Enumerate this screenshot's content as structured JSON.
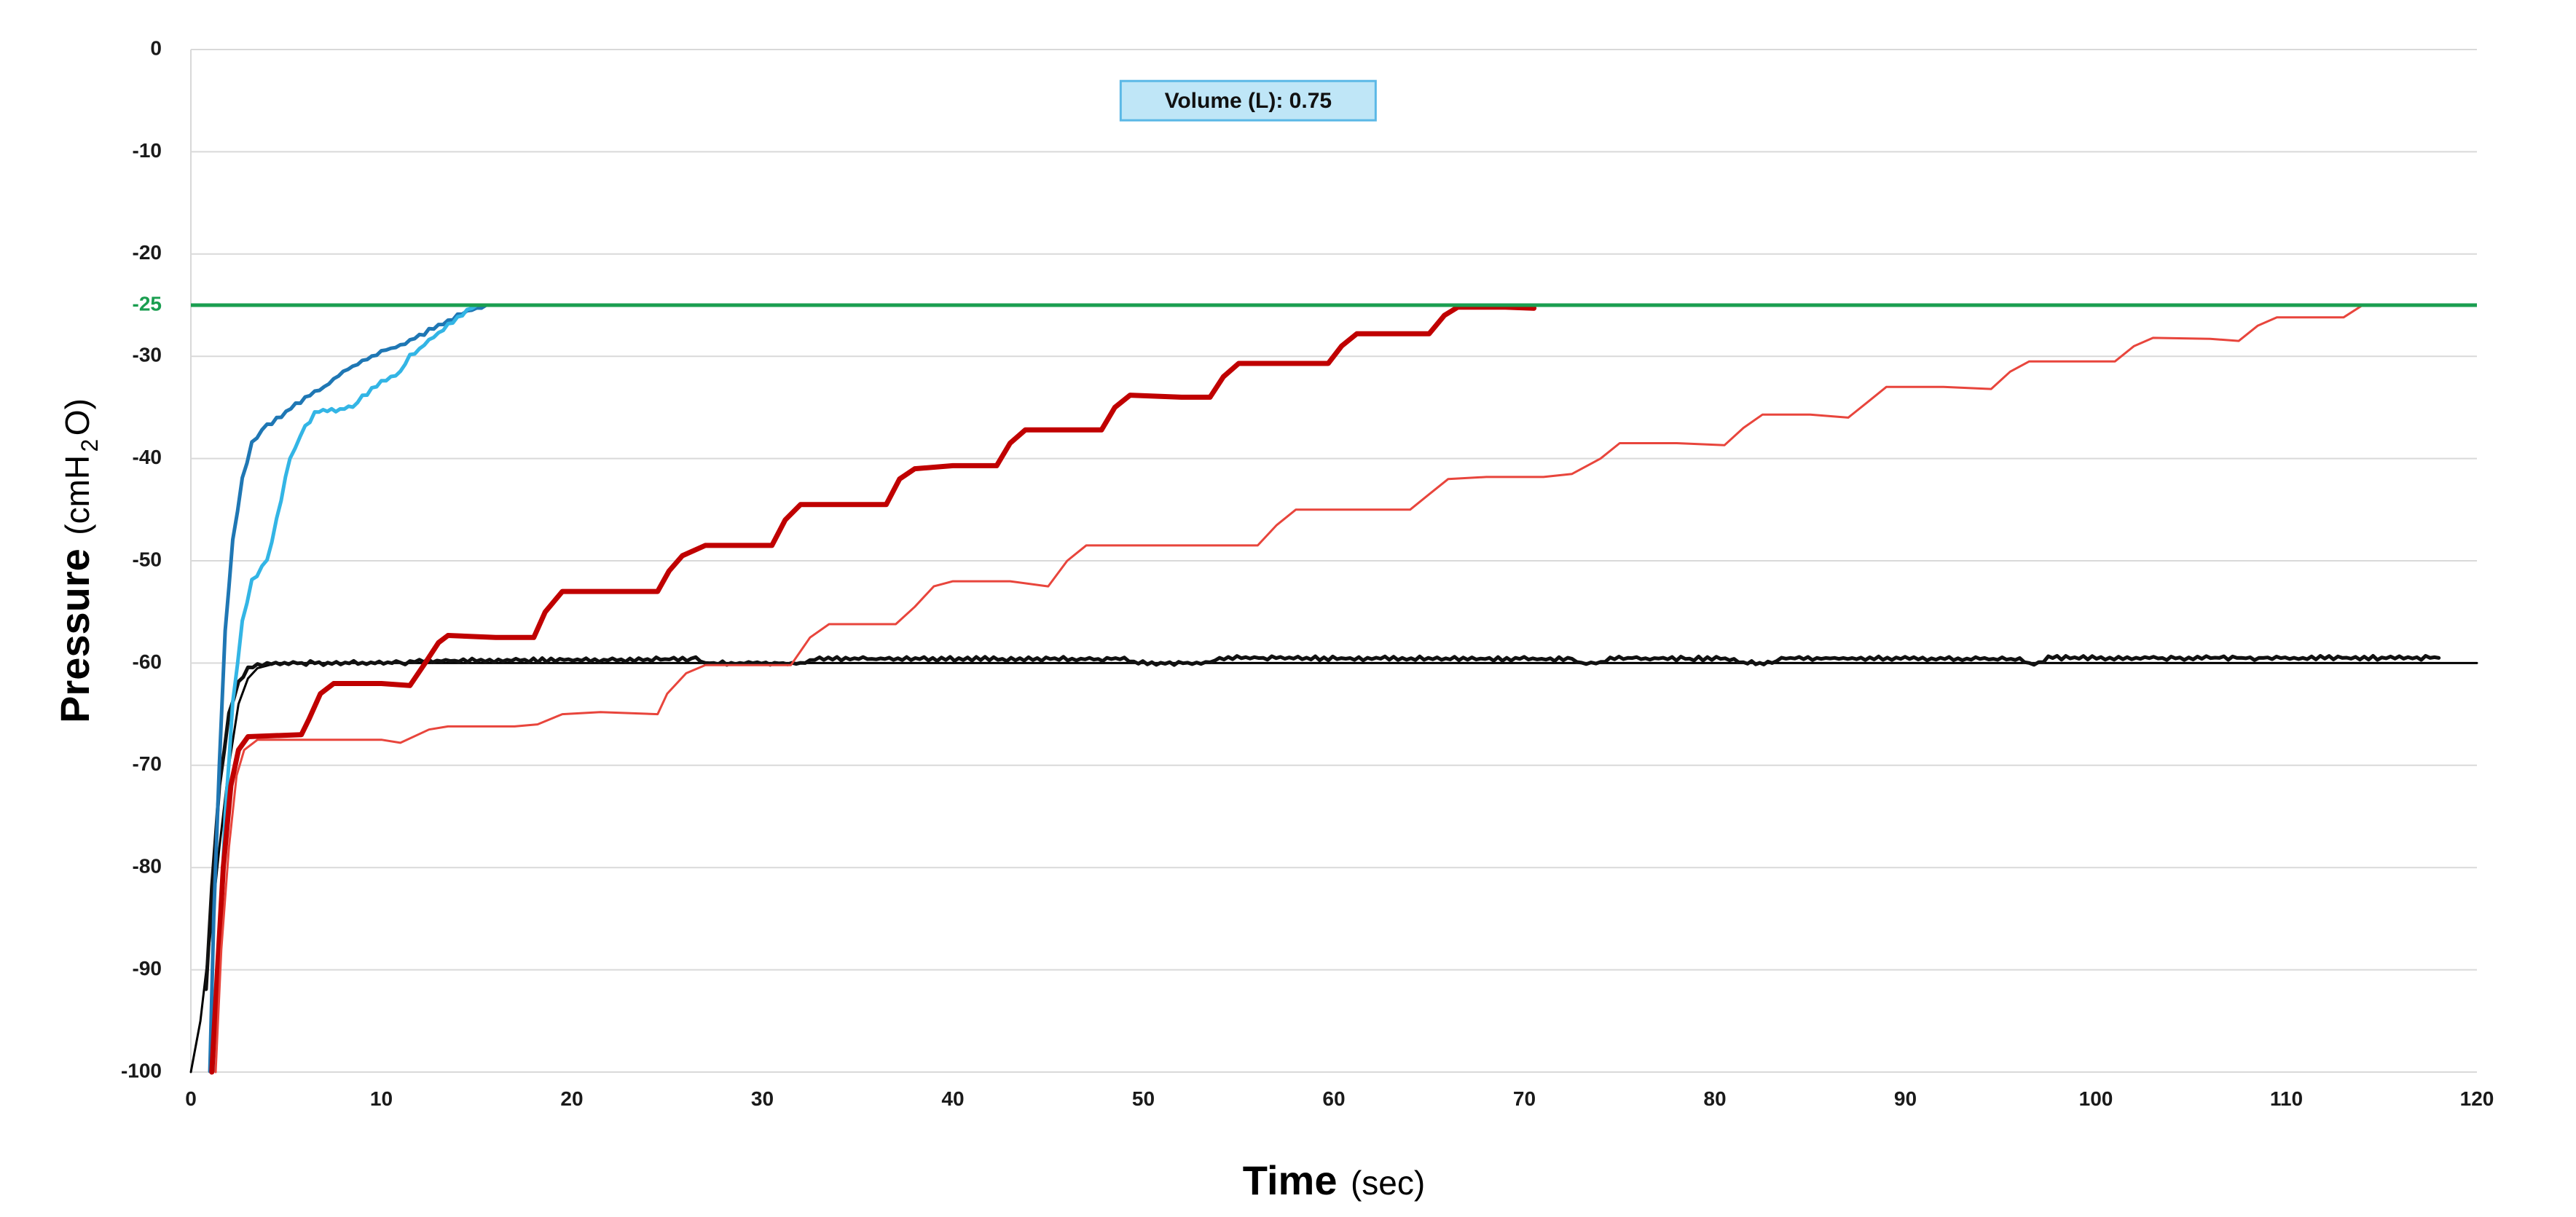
{
  "chart_data": {
    "type": "line",
    "xlabel": {
      "main": "Time",
      "unit": "(sec)"
    },
    "ylabel": {
      "main": "Pressure",
      "unit_prefix": "(cmH",
      "unit_sub": "2",
      "unit_suffix": "O)"
    },
    "xlim": [
      0,
      120
    ],
    "ylim": [
      -100,
      0
    ],
    "x_ticks": [
      "0",
      "10",
      "20",
      "30",
      "40",
      "50",
      "60",
      "70",
      "80",
      "90",
      "100",
      "110",
      "120"
    ],
    "y_ticks": [
      "0",
      "-10",
      "-20",
      "-30",
      "-40",
      "-50",
      "-60",
      "-70",
      "-80",
      "-90",
      "-100"
    ],
    "y_ticks_values": [
      0,
      -10,
      -20,
      -30,
      -40,
      -50,
      -60,
      -70,
      -80,
      -90,
      -100
    ],
    "grid": true,
    "annotation": {
      "text": "Volume (L): 0.75",
      "x": 55.5,
      "y": -5,
      "fill": "#bfe6f7",
      "stroke": "#5bb8e6"
    },
    "threshold": {
      "label": "-25",
      "value": -25,
      "color": "#1a9e50"
    },
    "series": [
      {
        "color": "#000000",
        "style": "thin",
        "points": [
          [
            0,
            -100
          ],
          [
            0.5,
            -95
          ],
          [
            1,
            -87
          ],
          [
            1.5,
            -78
          ],
          [
            2,
            -70
          ],
          [
            2.5,
            -64
          ],
          [
            3,
            -61.5
          ],
          [
            3.5,
            -60.5
          ],
          [
            4.5,
            -60
          ],
          [
            120,
            -60
          ]
        ]
      },
      {
        "color": "#111111",
        "style": "noisy",
        "points": [
          [
            0.8,
            -92
          ],
          [
            1.1,
            -82
          ],
          [
            1.5,
            -72
          ],
          [
            2,
            -65
          ],
          [
            2.5,
            -62
          ],
          [
            3,
            -60.5
          ],
          [
            4,
            -60
          ],
          [
            9,
            -60
          ],
          [
            11,
            -60
          ],
          [
            12,
            -59.8
          ],
          [
            26.5,
            -59.6
          ],
          [
            27,
            -60
          ],
          [
            32,
            -60
          ],
          [
            33,
            -59.6
          ],
          [
            49,
            -59.6
          ],
          [
            49.5,
            -60
          ],
          [
            53.5,
            -60
          ],
          [
            54,
            -59.5
          ],
          [
            72.5,
            -59.6
          ],
          [
            73,
            -60
          ],
          [
            74,
            -60
          ],
          [
            74.5,
            -59.5
          ],
          [
            81,
            -59.6
          ],
          [
            81.5,
            -60
          ],
          [
            83,
            -60
          ],
          [
            83.5,
            -59.5
          ],
          [
            96,
            -59.6
          ],
          [
            96.5,
            -60
          ],
          [
            97,
            -60
          ],
          [
            97.5,
            -59.5
          ],
          [
            118,
            -59.5
          ]
        ]
      },
      {
        "color": "#1f77b4",
        "style": "noisy",
        "points": [
          [
            1,
            -100
          ],
          [
            1.2,
            -85
          ],
          [
            1.5,
            -70
          ],
          [
            1.8,
            -57
          ],
          [
            2.2,
            -48
          ],
          [
            2.7,
            -42
          ],
          [
            3.2,
            -38.5
          ],
          [
            4,
            -36.8
          ],
          [
            5,
            -35.5
          ],
          [
            6,
            -34
          ],
          [
            7,
            -33
          ],
          [
            8,
            -31.5
          ],
          [
            9,
            -30.5
          ],
          [
            10,
            -29.5
          ],
          [
            11,
            -29
          ],
          [
            12,
            -28
          ],
          [
            13,
            -27
          ],
          [
            14,
            -26
          ],
          [
            15,
            -25.3
          ],
          [
            15.5,
            -25
          ]
        ]
      },
      {
        "color": "#33b5e5",
        "style": "noisy",
        "points": [
          [
            1.2,
            -100
          ],
          [
            1.5,
            -88
          ],
          [
            1.8,
            -75
          ],
          [
            2.2,
            -64
          ],
          [
            2.7,
            -56
          ],
          [
            3.2,
            -52
          ],
          [
            4,
            -50
          ],
          [
            4.5,
            -46
          ],
          [
            5.2,
            -40
          ],
          [
            6,
            -37
          ],
          [
            6.5,
            -35.5
          ],
          [
            8.5,
            -35
          ],
          [
            9,
            -34
          ],
          [
            10,
            -32.5
          ],
          [
            11,
            -31.5
          ],
          [
            11.5,
            -30
          ],
          [
            12.5,
            -28.5
          ],
          [
            13.5,
            -27
          ],
          [
            14.5,
            -25.5
          ],
          [
            15,
            -25
          ]
        ]
      },
      {
        "color": "#c00000",
        "style": "bold",
        "points": [
          [
            1.1,
            -100
          ],
          [
            1.4,
            -90
          ],
          [
            1.7,
            -80
          ],
          [
            2.1,
            -72
          ],
          [
            2.5,
            -68.5
          ],
          [
            3,
            -67.2
          ],
          [
            5.8,
            -67
          ],
          [
            6.2,
            -65.5
          ],
          [
            6.8,
            -63
          ],
          [
            7.5,
            -62
          ],
          [
            10,
            -62
          ],
          [
            11.5,
            -62.2
          ],
          [
            12.3,
            -60
          ],
          [
            13,
            -58
          ],
          [
            13.5,
            -57.3
          ],
          [
            16,
            -57.5
          ],
          [
            18,
            -57.5
          ],
          [
            18.6,
            -55
          ],
          [
            19.5,
            -53
          ],
          [
            22,
            -53
          ],
          [
            24.5,
            -53
          ],
          [
            25.1,
            -51
          ],
          [
            25.8,
            -49.5
          ],
          [
            27,
            -48.5
          ],
          [
            30.5,
            -48.5
          ],
          [
            31.2,
            -46
          ],
          [
            32,
            -44.5
          ],
          [
            35,
            -44.5
          ],
          [
            36.5,
            -44.5
          ],
          [
            37.2,
            -42
          ],
          [
            38,
            -41
          ],
          [
            40,
            -40.7
          ],
          [
            42.3,
            -40.7
          ],
          [
            43,
            -38.5
          ],
          [
            43.8,
            -37.2
          ],
          [
            45,
            -37.2
          ],
          [
            47.8,
            -37.2
          ],
          [
            48.5,
            -35
          ],
          [
            49.3,
            -33.8
          ],
          [
            52,
            -34
          ],
          [
            53.5,
            -34
          ],
          [
            54.2,
            -32
          ],
          [
            55,
            -30.7
          ],
          [
            57,
            -30.7
          ],
          [
            59.7,
            -30.7
          ],
          [
            60.4,
            -29
          ],
          [
            61.2,
            -27.8
          ],
          [
            63,
            -27.8
          ],
          [
            65,
            -27.8
          ],
          [
            65.8,
            -26
          ],
          [
            66.5,
            -25.2
          ],
          [
            69,
            -25.2
          ],
          [
            70.5,
            -25.3
          ]
        ]
      },
      {
        "color": "#e8453c",
        "style": "thin",
        "points": [
          [
            1.3,
            -100
          ],
          [
            1.6,
            -88
          ],
          [
            2,
            -78
          ],
          [
            2.4,
            -71
          ],
          [
            2.8,
            -68.5
          ],
          [
            3.5,
            -67.5
          ],
          [
            6,
            -67.5
          ],
          [
            10,
            -67.5
          ],
          [
            11,
            -67.8
          ],
          [
            12.5,
            -66.5
          ],
          [
            13.5,
            -66.2
          ],
          [
            17,
            -66.2
          ],
          [
            18.2,
            -66
          ],
          [
            19.5,
            -65
          ],
          [
            21.5,
            -64.8
          ],
          [
            24.5,
            -65
          ],
          [
            25,
            -63
          ],
          [
            26,
            -61
          ],
          [
            27,
            -60.2
          ],
          [
            31.5,
            -60.2
          ],
          [
            32.5,
            -57.5
          ],
          [
            33.5,
            -56.2
          ],
          [
            36,
            -56.2
          ],
          [
            37,
            -56.2
          ],
          [
            38,
            -54.5
          ],
          [
            39,
            -52.5
          ],
          [
            40,
            -52
          ],
          [
            43,
            -52
          ],
          [
            45,
            -52.5
          ],
          [
            46,
            -50
          ],
          [
            47,
            -48.5
          ],
          [
            50,
            -48.5
          ],
          [
            56,
            -48.5
          ],
          [
            57,
            -46.5
          ],
          [
            58,
            -45
          ],
          [
            62,
            -45
          ],
          [
            64,
            -45
          ],
          [
            65,
            -43.5
          ],
          [
            66,
            -42
          ],
          [
            68,
            -41.8
          ],
          [
            71,
            -41.8
          ],
          [
            72.5,
            -41.5
          ],
          [
            74,
            -40
          ],
          [
            75,
            -38.5
          ],
          [
            78,
            -38.5
          ],
          [
            80.5,
            -38.7
          ],
          [
            81.5,
            -37
          ],
          [
            82.5,
            -35.7
          ],
          [
            85,
            -35.7
          ],
          [
            87,
            -36
          ],
          [
            88,
            -34.5
          ],
          [
            89,
            -33
          ],
          [
            92,
            -33
          ],
          [
            94.5,
            -33.2
          ],
          [
            95.5,
            -31.5
          ],
          [
            96.5,
            -30.5
          ],
          [
            100,
            -30.5
          ],
          [
            101,
            -30.5
          ],
          [
            102,
            -29
          ],
          [
            103,
            -28.2
          ],
          [
            106,
            -28.3
          ],
          [
            107.5,
            -28.5
          ],
          [
            108.5,
            -27
          ],
          [
            109.5,
            -26.2
          ],
          [
            112,
            -26.2
          ],
          [
            113,
            -26.2
          ],
          [
            114,
            -25
          ]
        ]
      }
    ]
  }
}
